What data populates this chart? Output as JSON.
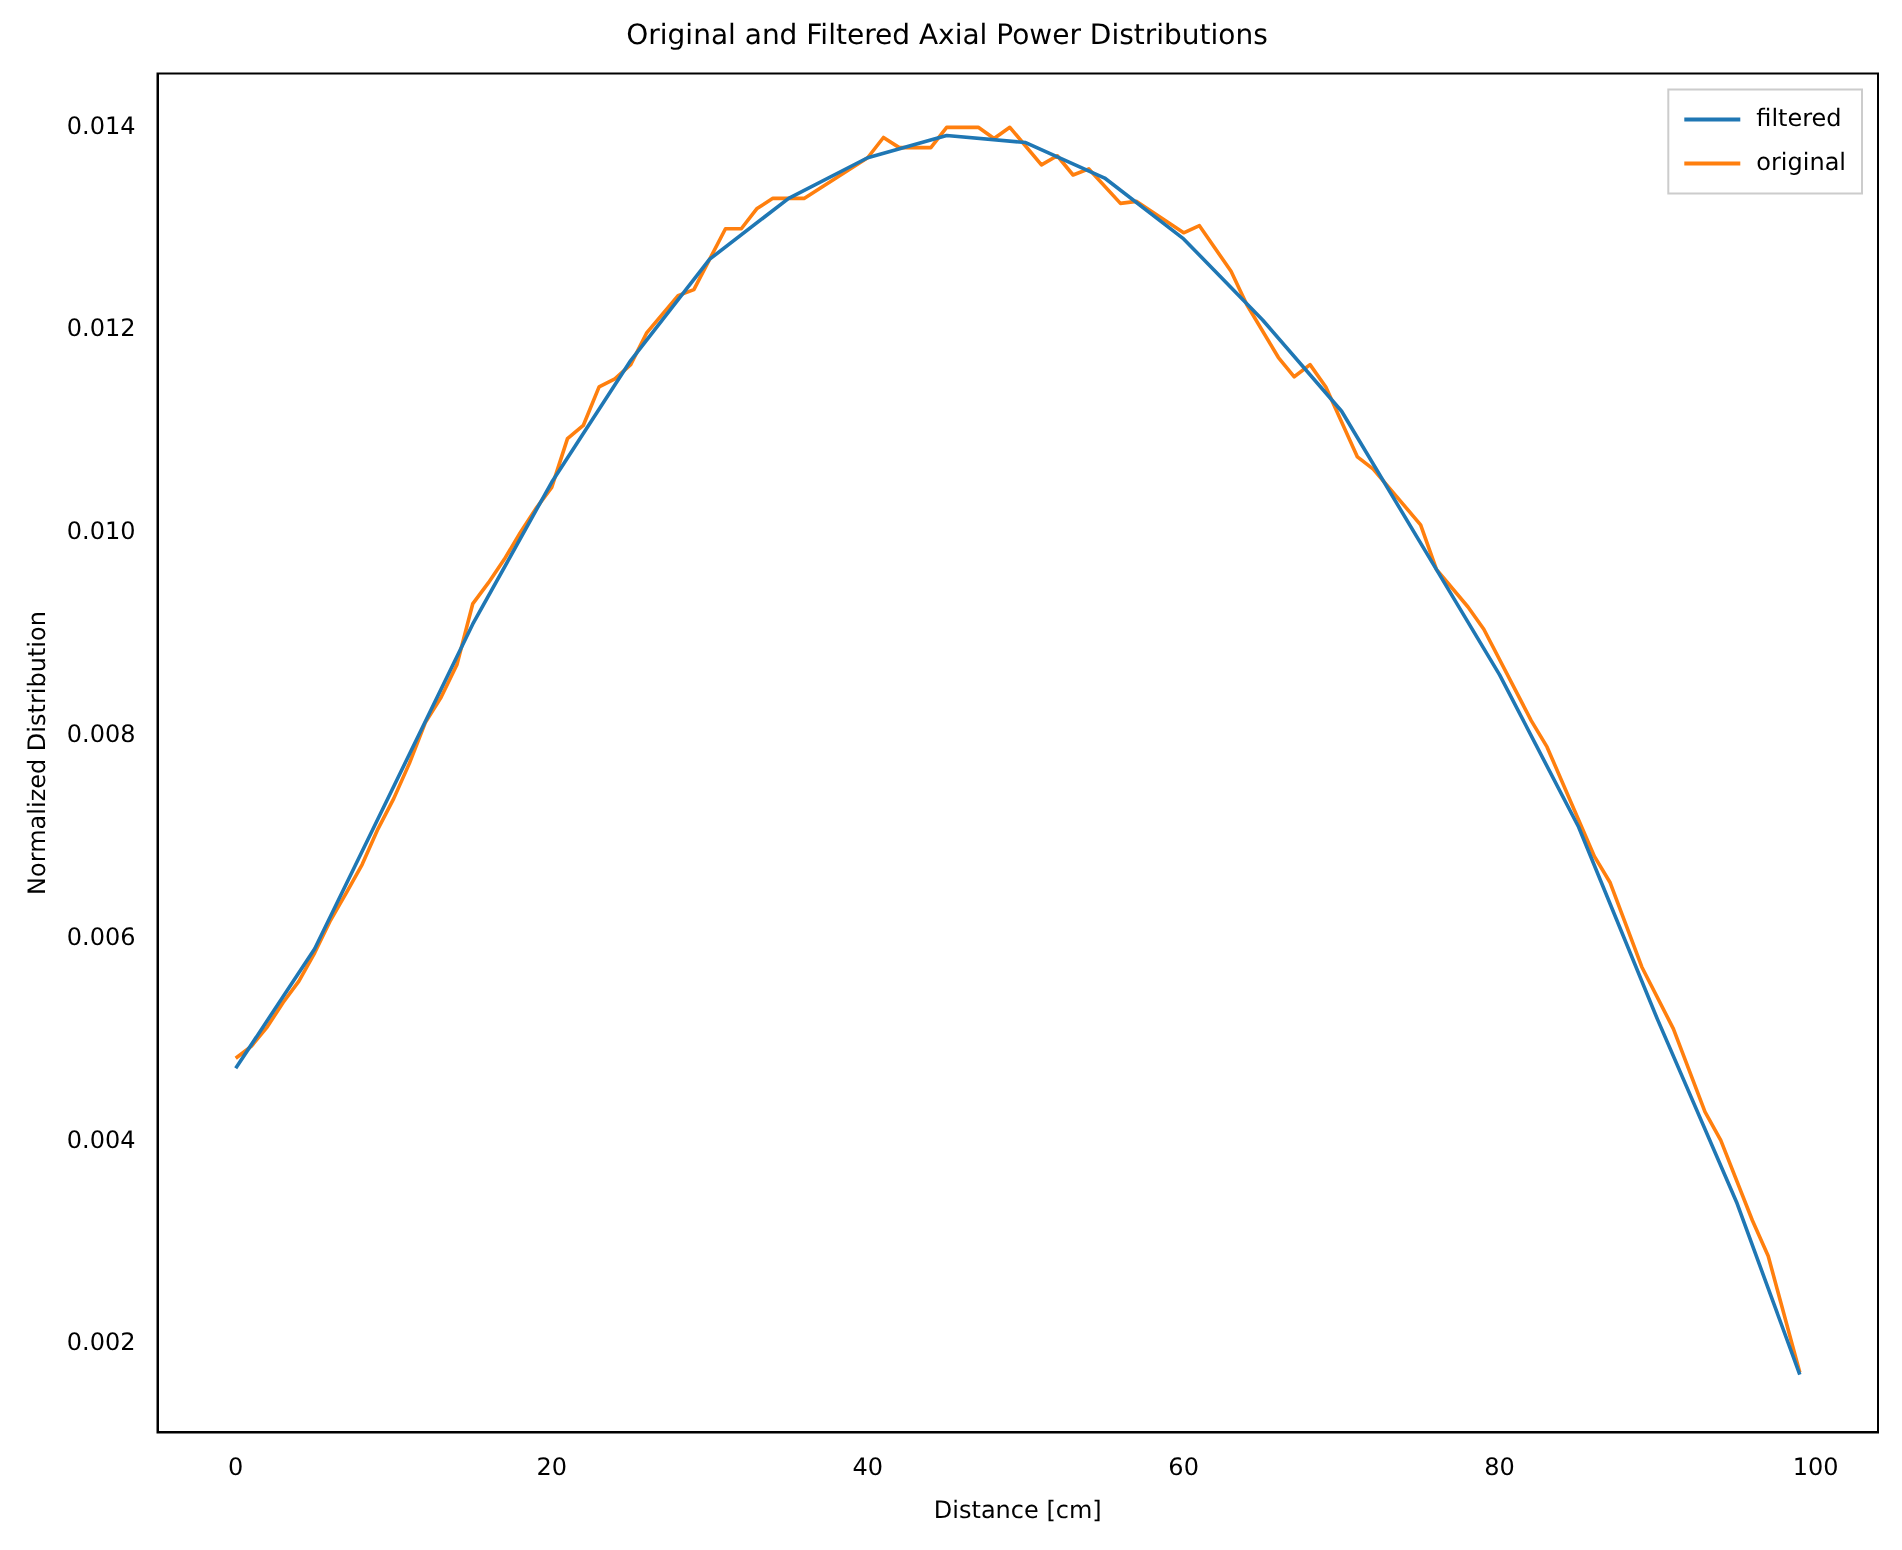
{
  "chart_data": {
    "type": "line",
    "title": "Original and Filtered Axial Power Distributions",
    "xlabel": "Distance [cm]",
    "ylabel": "Normalized Distribution",
    "xlim": [
      -4.95,
      103.95
    ],
    "ylim": [
      0.00113,
      0.01453
    ],
    "xticks": [
      0,
      20,
      40,
      60,
      80,
      100
    ],
    "yticks": [
      0.002,
      0.004,
      0.006,
      0.008,
      {
        "value": 0.01,
        "label": "0.010"
      },
      0.012,
      0.014
    ],
    "legend": "top right",
    "grid": false,
    "marker": "none",
    "line_style": "solid",
    "series": [
      {
        "name": "filtered",
        "color": "#1f77b4",
        "x": [
          0,
          5,
          10,
          15,
          20,
          25,
          30,
          35,
          40,
          45,
          50,
          55,
          60,
          65,
          70,
          75,
          80,
          85,
          90,
          95,
          99
        ],
        "values": [
          0.00472,
          0.0059,
          0.0075,
          0.0091,
          0.0105,
          0.0117,
          0.0127,
          0.0133,
          0.0137,
          0.01392,
          0.01385,
          0.0135,
          0.0129,
          0.0121,
          0.0112,
          0.0099,
          0.0086,
          0.0071,
          0.0052,
          0.0034,
          0.0017
        ]
      },
      {
        "name": "original",
        "color": "#ff7f0e",
        "x": [
          0,
          1,
          2,
          3,
          4,
          5,
          6,
          7,
          8,
          9,
          10,
          11,
          12,
          13,
          14,
          15,
          16,
          17,
          18,
          19,
          20,
          21,
          22,
          23,
          24,
          25,
          26,
          28,
          29,
          31,
          32,
          33,
          34,
          36,
          38,
          40,
          41,
          42,
          44,
          45,
          47,
          48,
          49,
          51,
          52,
          53,
          54,
          56,
          57,
          60,
          61,
          63,
          64,
          66,
          67,
          68,
          69,
          71,
          72,
          75,
          76,
          78,
          79,
          82,
          83,
          86,
          87,
          89,
          91,
          93,
          94,
          96,
          97,
          99
        ],
        "values": [
          0.00482,
          0.00494,
          0.00513,
          0.00537,
          0.00558,
          0.00586,
          0.00618,
          0.00645,
          0.00673,
          0.00708,
          0.00738,
          0.00773,
          0.00813,
          0.00838,
          0.0087,
          0.0093,
          0.00951,
          0.00974,
          0.01,
          0.01024,
          0.01045,
          0.01093,
          0.01106,
          0.01144,
          0.01152,
          0.01166,
          0.01197,
          0.01234,
          0.0124,
          0.013,
          0.013,
          0.0132,
          0.0133,
          0.0133,
          0.0135,
          0.0137,
          0.0139,
          0.0138,
          0.0138,
          0.014,
          0.014,
          0.01389,
          0.014,
          0.01363,
          0.01372,
          0.01353,
          0.01359,
          0.01325,
          0.01327,
          0.01296,
          0.01303,
          0.01258,
          0.01225,
          0.01173,
          0.01154,
          0.01166,
          0.01144,
          0.01075,
          0.01063,
          0.01008,
          0.00964,
          0.00927,
          0.00905,
          0.00815,
          0.00789,
          0.00681,
          0.00655,
          0.00572,
          0.00511,
          0.00429,
          0.00401,
          0.00322,
          0.00287,
          0.00172
        ]
      }
    ]
  }
}
